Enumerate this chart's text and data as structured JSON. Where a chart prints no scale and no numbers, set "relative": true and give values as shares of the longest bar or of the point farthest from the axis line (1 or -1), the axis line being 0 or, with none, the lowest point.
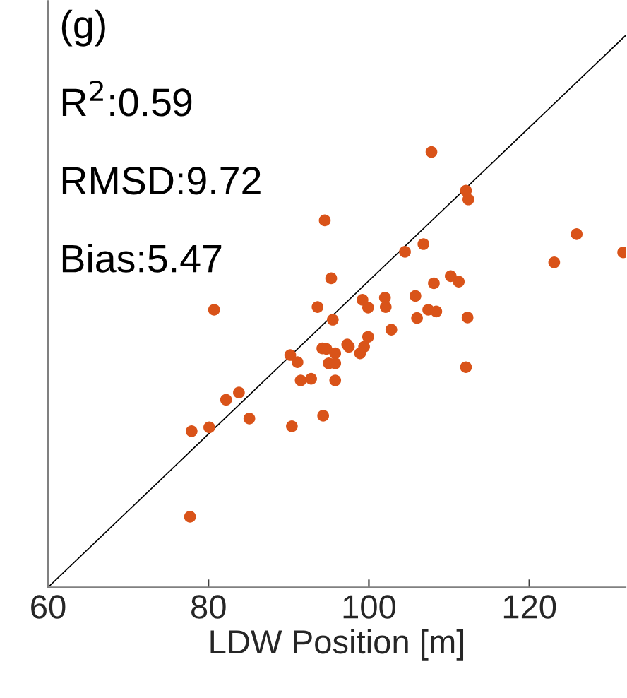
{
  "chart_data": {
    "type": "scatter",
    "xlabel": "LDW Position [m]",
    "annotations": [
      "(g)",
      "R$^{2}$:0.59",
      "RMSD:9.72",
      "Bias:5.47"
    ],
    "xlim": [
      60,
      132
    ],
    "xticks": [
      60,
      80,
      100,
      120
    ],
    "relative": true,
    "grid": false,
    "series": [
      {
        "type": "line",
        "color": "#000000",
        "line_style": "solid",
        "marker": "none",
        "x": [
          60,
          132
        ],
        "values": [
          0,
          1
        ]
      },
      {
        "color": "#d95319",
        "marker": "circle",
        "x": [
          107.8,
          112.1,
          112.4,
          94.5,
          125.9,
          131.7,
          123.1,
          104.5,
          106.8,
          95.3,
          110.2,
          111.2,
          108.1,
          80.7,
          93.6,
          99.2,
          99.9,
          102.0,
          102.1,
          105.8,
          95.5,
          107.4,
          108.4,
          106.0,
          112.3,
          102.8,
          99.9,
          97.3,
          97.5,
          99.4,
          98.9,
          94.2,
          94.7,
          90.2,
          95.8,
          95.0,
          95.8,
          112.1,
          91.1,
          91.5,
          92.8,
          95.8,
          82.2,
          83.8,
          85.1,
          77.9,
          80.1,
          90.4,
          94.3,
          77.7
        ],
        "values": [
          0.789,
          0.719,
          0.703,
          0.665,
          0.64,
          0.607,
          0.589,
          0.608,
          0.622,
          0.56,
          0.564,
          0.554,
          0.551,
          0.503,
          0.508,
          0.521,
          0.507,
          0.525,
          0.508,
          0.528,
          0.485,
          0.503,
          0.5,
          0.488,
          0.489,
          0.467,
          0.454,
          0.44,
          0.436,
          0.436,
          0.424,
          0.433,
          0.432,
          0.421,
          0.424,
          0.406,
          0.406,
          0.399,
          0.408,
          0.375,
          0.378,
          0.375,
          0.34,
          0.353,
          0.306,
          0.283,
          0.29,
          0.292,
          0.311,
          0.128
        ]
      }
    ]
  }
}
